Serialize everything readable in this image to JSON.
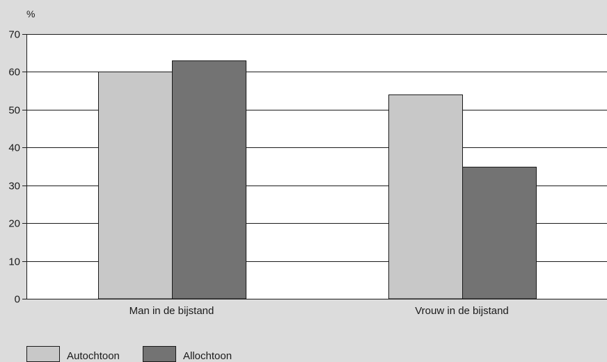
{
  "chart_data": {
    "type": "bar",
    "ylabel": "%",
    "ylim": [
      0,
      70
    ],
    "yticks": [
      0,
      10,
      20,
      30,
      40,
      50,
      60,
      70
    ],
    "grid": true,
    "legend_position": "bottom-left",
    "categories": [
      "Man in de bijstand",
      "Vrouw in de bijstand"
    ],
    "series": [
      {
        "name": "Autochtoon",
        "values": [
          60,
          54
        ],
        "color": "#c8c8c8"
      },
      {
        "name": "Allochtoon",
        "values": [
          63,
          35
        ],
        "color": "#737373"
      }
    ]
  }
}
